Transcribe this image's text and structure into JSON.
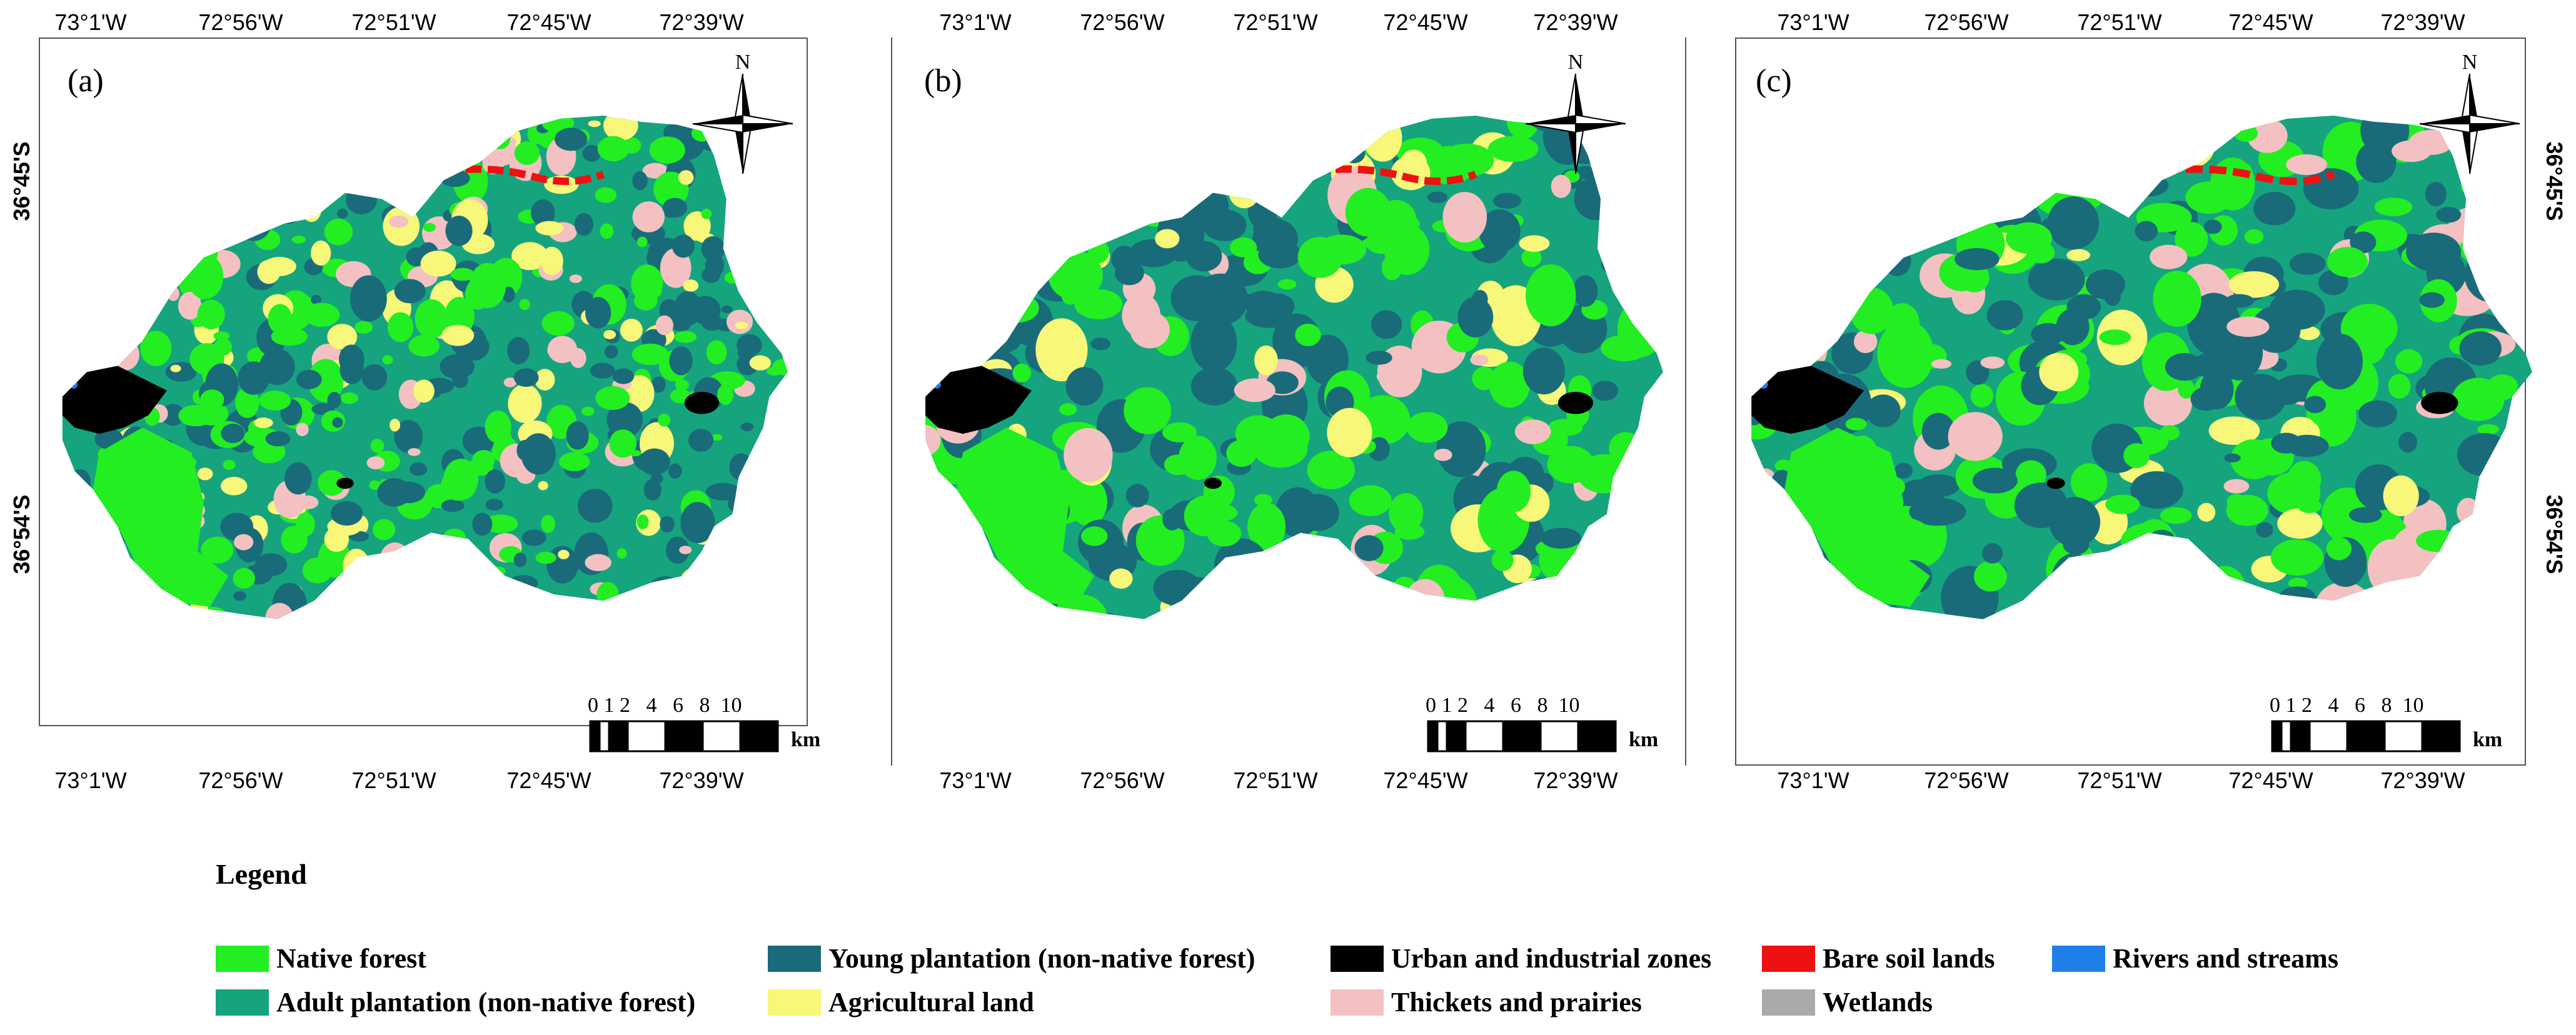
{
  "panels": [
    {
      "label": "(a)",
      "top_ticks": [
        "73°1'W",
        "72°56'W",
        "72°51'W",
        "72°45'W",
        "72°39'W"
      ],
      "bottom_ticks": [
        "73°1'W",
        "72°56'W",
        "72°51'W",
        "72°45'W",
        "72°39'W"
      ],
      "lat_ticks": [
        "36°45'S",
        "36°54'S"
      ],
      "lat_side": "left",
      "scale_labels": "0 1 2   4   6   8  10",
      "scale_unit": "km",
      "north": "N"
    },
    {
      "label": "(b)",
      "top_ticks": [
        "73°1'W",
        "72°56'W",
        "72°51'W",
        "72°45'W",
        "72°39'W"
      ],
      "bottom_ticks": [
        "73°1'W",
        "72°56'W",
        "72°51'W",
        "72°45'W",
        "72°39'W"
      ],
      "lat_ticks": [],
      "lat_side": "none",
      "scale_labels": "0 1 2   4   6   8  10",
      "scale_unit": "km",
      "north": "N"
    },
    {
      "label": "(c)",
      "top_ticks": [
        "73°1'W",
        "72°56'W",
        "72°51'W",
        "72°45'W",
        "72°39'W"
      ],
      "bottom_ticks": [
        "73°1'W",
        "72°56'W",
        "72°51'W",
        "72°45'W",
        "72°39'W"
      ],
      "lat_ticks": [
        "36°45'S",
        "36°54'S"
      ],
      "lat_side": "right",
      "scale_labels": "0 1 2   4   6   8  10",
      "scale_unit": "km",
      "north": "N"
    }
  ],
  "legend": {
    "title": "Legend",
    "items": [
      {
        "label": "Native forest",
        "color": "#22ee22"
      },
      {
        "label": "Young plantation (non-native forest)",
        "color": "#1a6b7a"
      },
      {
        "label": "Urban and industrial zones",
        "color": "#000000"
      },
      {
        "label": "Bare soil lands",
        "color": "#ee1111"
      },
      {
        "label": "Rivers and streams",
        "color": "#1f7fe8"
      },
      {
        "label": "Adult plantation (non-native forest)",
        "color": "#16a47e"
      },
      {
        "label": "Agricultural land",
        "color": "#f7f77a"
      },
      {
        "label": "Thickets and prairies",
        "color": "#f3c1c1"
      },
      {
        "label": "Wetlands",
        "color": "#aaaaaa"
      }
    ]
  }
}
